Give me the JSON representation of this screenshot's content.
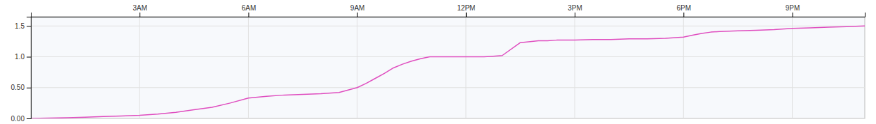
{
  "chart_data": {
    "type": "line",
    "color": "#df4dbf",
    "grid": true,
    "xlim": [
      0,
      23
    ],
    "ylim": [
      0.0,
      1.65
    ],
    "xticks": [
      {
        "value": 3,
        "label": "3AM"
      },
      {
        "value": 6,
        "label": "6AM"
      },
      {
        "value": 9,
        "label": "9AM"
      },
      {
        "value": 12,
        "label": "12PM"
      },
      {
        "value": 15,
        "label": "3PM"
      },
      {
        "value": 18,
        "label": "6PM"
      },
      {
        "value": 21,
        "label": "9PM"
      }
    ],
    "yticks": [
      {
        "value": 0.0,
        "label": "0.00"
      },
      {
        "value": 0.5,
        "label": "0.50"
      },
      {
        "value": 1.0,
        "label": "1.0"
      },
      1.5
    ],
    "x": [
      0,
      0.5,
      1,
      1.5,
      2,
      2.5,
      3,
      3.5,
      4,
      4.5,
      5,
      5.5,
      6,
      6.5,
      7,
      7.5,
      8,
      8.5,
      9,
      9.25,
      9.5,
      9.75,
      10,
      10.25,
      10.5,
      10.75,
      11,
      11.25,
      11.5,
      11.75,
      12,
      12.25,
      12.5,
      12.75,
      13,
      13.5,
      14,
      14.25,
      14.5,
      14.75,
      15,
      15.5,
      16,
      16.5,
      17,
      17.5,
      18,
      18.25,
      18.5,
      18.75,
      19,
      19.5,
      20,
      20.5,
      21,
      21.5,
      22,
      22.5,
      23
    ],
    "values": [
      0,
      0.005,
      0.01,
      0.02,
      0.03,
      0.04,
      0.05,
      0.07,
      0.1,
      0.14,
      0.18,
      0.25,
      0.33,
      0.36,
      0.38,
      0.39,
      0.4,
      0.42,
      0.5,
      0.57,
      0.65,
      0.73,
      0.82,
      0.88,
      0.93,
      0.97,
      1.0,
      1.0,
      1.0,
      1.0,
      1.0,
      1.0,
      1.0,
      1.01,
      1.02,
      1.23,
      1.26,
      1.26,
      1.27,
      1.27,
      1.27,
      1.28,
      1.28,
      1.29,
      1.29,
      1.3,
      1.32,
      1.35,
      1.38,
      1.4,
      1.41,
      1.42,
      1.43,
      1.44,
      1.46,
      1.47,
      1.48,
      1.49,
      1.5
    ]
  }
}
